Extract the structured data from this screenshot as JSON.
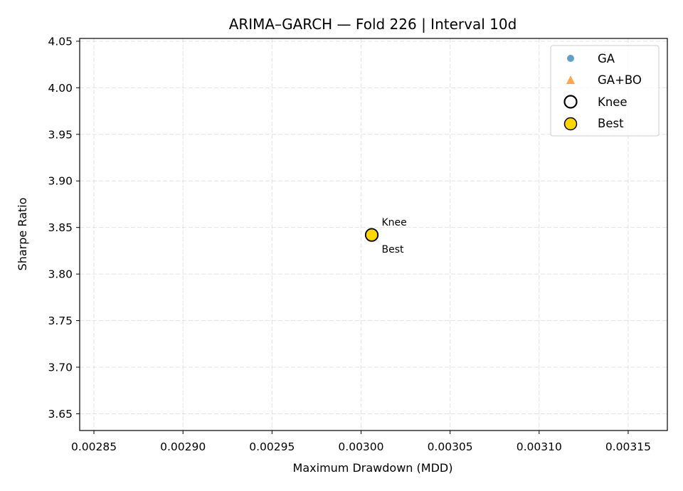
{
  "chart_data": {
    "type": "scatter",
    "title": "ARIMA–GARCH — Fold 226 | Interval 10d",
    "xlabel": "Maximum Drawdown (MDD)",
    "ylabel": "Sharpe Ratio",
    "xlim": [
      0.002842,
      0.003172
    ],
    "ylim": [
      3.632,
      4.053
    ],
    "xticks": [
      0.00285,
      0.0029,
      0.00295,
      0.003,
      0.00305,
      0.0031,
      0.00315
    ],
    "xtick_labels": [
      "0.00285",
      "0.00290",
      "0.00295",
      "0.00300",
      "0.00305",
      "0.00310",
      "0.00315"
    ],
    "yticks": [
      3.65,
      3.7,
      3.75,
      3.8,
      3.85,
      3.9,
      3.95,
      4.0,
      4.05
    ],
    "ytick_labels": [
      "3.65",
      "3.70",
      "3.75",
      "3.80",
      "3.85",
      "3.90",
      "3.95",
      "4.00",
      "4.05"
    ],
    "grid": true,
    "legend_position": "top-right",
    "series": [
      {
        "name": "GA",
        "marker": "circle",
        "color": "#1f77b4",
        "points": []
      },
      {
        "name": "GA+BO",
        "marker": "triangle",
        "color": "#ff7f0e",
        "points": []
      },
      {
        "name": "Knee",
        "marker": "hollow-circle",
        "color": "#000000",
        "points": [
          {
            "x": 0.003006,
            "y": 3.842
          }
        ]
      },
      {
        "name": "Best",
        "marker": "filled-circle",
        "color": "#ffd700",
        "points": [
          {
            "x": 0.003006,
            "y": 3.842
          }
        ]
      }
    ],
    "annotations": [
      {
        "text": "Knee",
        "x": 0.003006,
        "y": 3.842,
        "placement": "above-right"
      },
      {
        "text": "Best",
        "x": 0.003006,
        "y": 3.842,
        "placement": "below-right"
      }
    ]
  }
}
